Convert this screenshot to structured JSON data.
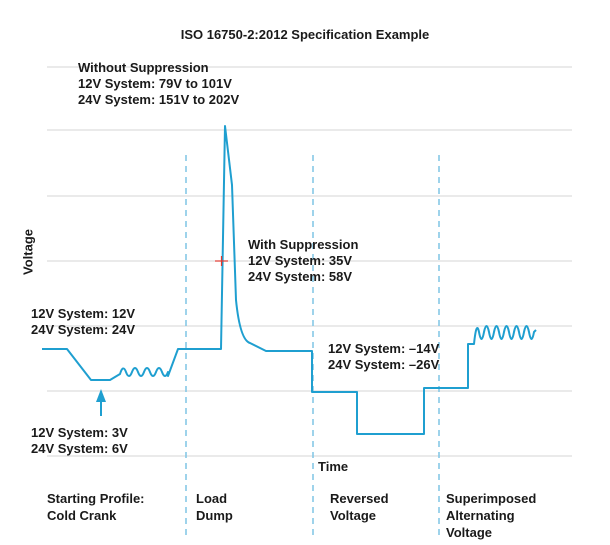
{
  "chart_data": {
    "type": "line",
    "title": "ISO 16750-2:2012 Specification Example",
    "xlabel": "Time",
    "ylabel": "Voltage",
    "grid": true,
    "legend": "none",
    "series_color": "#1f9fd0",
    "divider_color": "#86c8e6",
    "marker_color": "#e03a2f",
    "annotations": {
      "without_suppression": [
        "Without Suppression",
        "12V System: 79V to 101V",
        "24V System: 151V to 202V"
      ],
      "with_suppression": [
        "With Suppression",
        "12V System: 35V",
        "24V System: 58V"
      ],
      "nominal": [
        "12V System: 12V",
        "24V System: 24V"
      ],
      "cold_crank_min": [
        "12V System: 3V",
        "24V System: 6V"
      ],
      "reversed": [
        "12V System: –14V",
        "24V System: –26V"
      ]
    },
    "phases": [
      {
        "label": [
          "Starting Profile:",
          "Cold Crank"
        ]
      },
      {
        "label": [
          "Load",
          "Dump"
        ]
      },
      {
        "label": [
          "Reversed",
          "Voltage"
        ]
      },
      {
        "label": [
          "Superimposed",
          "Alternating",
          "Voltage"
        ]
      }
    ]
  }
}
